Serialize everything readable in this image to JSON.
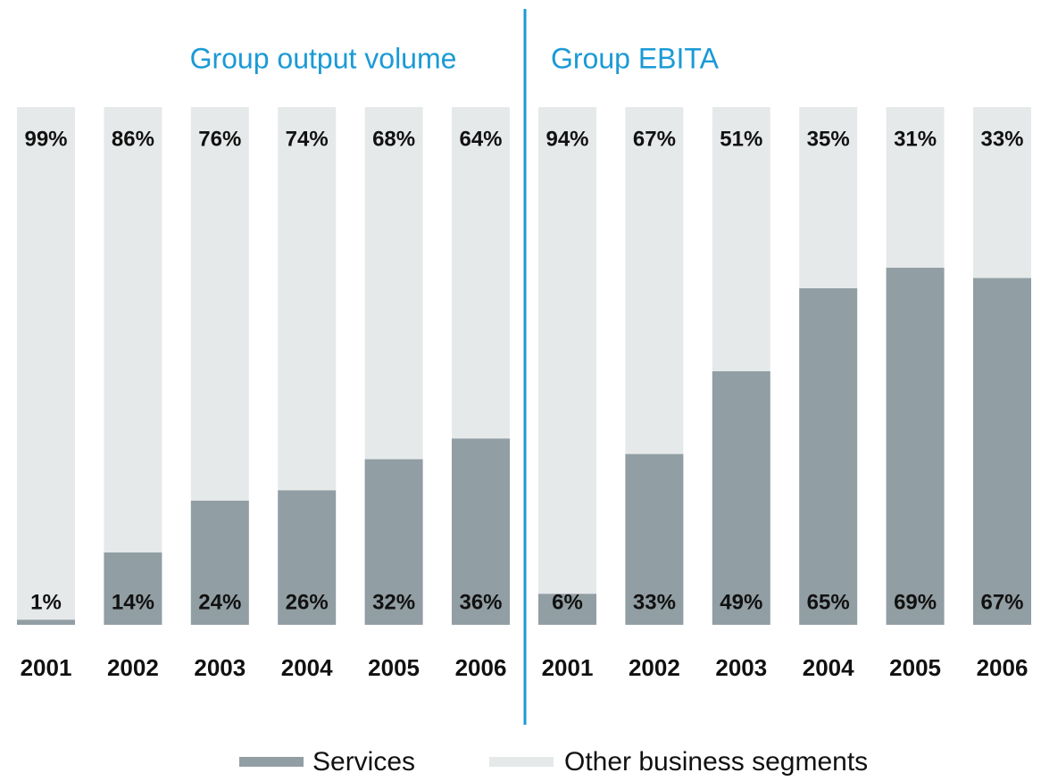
{
  "chart_data": [
    {
      "type": "stacked_bar",
      "title": "Group output volume",
      "categories": [
        "2001",
        "2002",
        "2003",
        "2004",
        "2005",
        "2006"
      ],
      "ylim": [
        0,
        100
      ],
      "series": [
        {
          "name": "Services",
          "color": "#919ea3",
          "values": [
            1,
            14,
            24,
            26,
            32,
            36
          ],
          "value_labels": [
            "1%",
            "14%",
            "24%",
            "26%",
            "32%",
            "36%"
          ]
        },
        {
          "name": "Other business segments",
          "color": "#e6e9ea",
          "values": [
            99,
            86,
            76,
            74,
            68,
            64
          ],
          "value_labels": [
            "99%",
            "86%",
            "76%",
            "74%",
            "68%",
            "64%"
          ]
        }
      ]
    },
    {
      "type": "stacked_bar",
      "title": "Group EBITA",
      "categories": [
        "2001",
        "2002",
        "2003",
        "2004",
        "2005",
        "2006"
      ],
      "ylim": [
        0,
        100
      ],
      "series": [
        {
          "color": "#919ea3",
          "values": [
            6,
            33,
            49,
            65,
            69,
            67
          ],
          "value_labels": [
            "6%",
            "33%",
            "49%",
            "65%",
            "69%",
            "67%"
          ]
        },
        {
          "color": "#e6e9ea",
          "values": [
            94,
            67,
            51,
            35,
            31,
            33
          ],
          "value_labels": [
            "94%",
            "67%",
            "51%",
            "35%",
            "31%",
            "33%"
          ]
        }
      ]
    }
  ]
}
